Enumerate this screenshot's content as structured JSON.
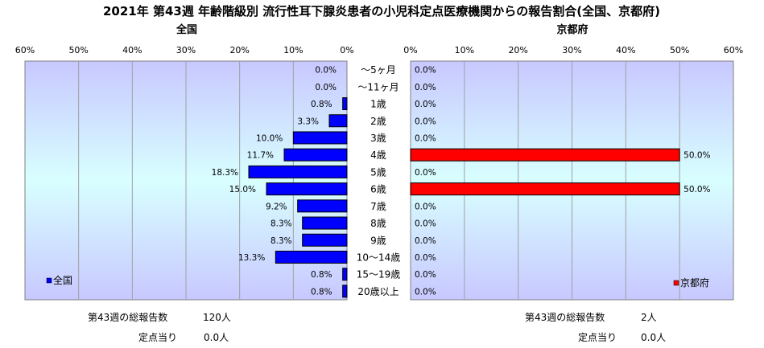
{
  "title": "2021年 第43週 年齢階級別 流行性耳下腺炎患者の小児科定点医療機関からの報告割合(全国、京都府)",
  "age_groups": [
    "～5ヶ月",
    "～11ヶ月",
    "1歳",
    "2歳",
    "3歳",
    "4歳",
    "5歳",
    "6歳",
    "7歳",
    "8歳",
    "9歳",
    "10～14歳",
    "15～19歳",
    "20歳以上"
  ],
  "left_panel": {
    "heading": "全国",
    "legend": "全国",
    "summary": {
      "total_label": "第43週の総報告数",
      "total_value": "120人",
      "per_site_label": "定点当り",
      "per_site_value": "0.0人"
    }
  },
  "right_panel": {
    "heading": "京都府",
    "legend": "京都府",
    "summary": {
      "total_label": "第43週の総報告数",
      "total_value": "2人",
      "per_site_label": "定点当り",
      "per_site_value": "0.0人"
    }
  },
  "colors": {
    "national_bar": "#0000ff",
    "kyoto_bar": "#ff0000",
    "plot_bg_top": "#c8c8ff",
    "plot_bg_mid": "#d8ffff",
    "plot_bg_bottom": "#c8c8ff"
  },
  "chart_data": [
    {
      "type": "bar",
      "orientation": "horizontal",
      "direction": "right-to-left",
      "categories": [
        "～5ヶ月",
        "～11ヶ月",
        "1歳",
        "2歳",
        "3歳",
        "4歳",
        "5歳",
        "6歳",
        "7歳",
        "8歳",
        "9歳",
        "10～14歳",
        "15～19歳",
        "20歳以上"
      ],
      "series": [
        {
          "name": "全国",
          "values": [
            0.0,
            0.0,
            0.8,
            3.3,
            10.0,
            11.7,
            18.3,
            15.0,
            9.2,
            8.3,
            8.3,
            13.3,
            0.8,
            0.8
          ]
        }
      ],
      "value_labels": [
        "0.0%",
        "0.0%",
        "0.8%",
        "3.3%",
        "10.0%",
        "11.7%",
        "18.3%",
        "15.0%",
        "9.2%",
        "8.3%",
        "8.3%",
        "13.3%",
        "0.8%",
        "0.8%"
      ],
      "xlim": [
        0,
        60
      ],
      "x_ticks": [
        "60%",
        "50%",
        "40%",
        "30%",
        "20%",
        "10%",
        "0%"
      ],
      "grid": true,
      "legend_position": "bottom-left"
    },
    {
      "type": "bar",
      "orientation": "horizontal",
      "direction": "left-to-right",
      "categories": [
        "～5ヶ月",
        "～11ヶ月",
        "1歳",
        "2歳",
        "3歳",
        "4歳",
        "5歳",
        "6歳",
        "7歳",
        "8歳",
        "9歳",
        "10～14歳",
        "15～19歳",
        "20歳以上"
      ],
      "series": [
        {
          "name": "京都府",
          "values": [
            0.0,
            0.0,
            0.0,
            0.0,
            0.0,
            50.0,
            0.0,
            50.0,
            0.0,
            0.0,
            0.0,
            0.0,
            0.0,
            0.0
          ]
        }
      ],
      "value_labels": [
        "0.0%",
        "0.0%",
        "0.0%",
        "0.0%",
        "0.0%",
        "50.0%",
        "0.0%",
        "50.0%",
        "0.0%",
        "0.0%",
        "0.0%",
        "0.0%",
        "0.0%",
        "0.0%"
      ],
      "xlim": [
        0,
        60
      ],
      "x_ticks": [
        "0%",
        "10%",
        "20%",
        "30%",
        "40%",
        "50%",
        "60%"
      ],
      "grid": true,
      "legend_position": "bottom-right"
    }
  ]
}
